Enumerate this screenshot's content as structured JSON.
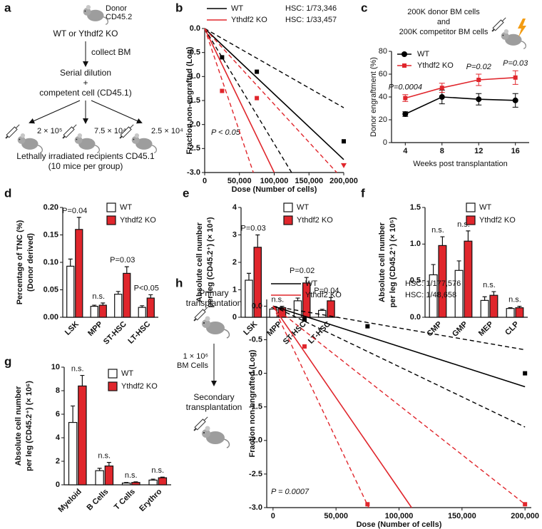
{
  "panel_labels": [
    "a",
    "b",
    "c",
    "d",
    "e",
    "f",
    "g",
    "h"
  ],
  "diagram_a": {
    "donor": "Donor",
    "donor_marker": "CD45.2",
    "genotypes": "WT or Ythdf2 KO",
    "step1": "collect BM",
    "step2": "Serial dilution",
    "plus": "+",
    "step3": "competent cell (CD45.1)",
    "doses": [
      "2 × 10⁵",
      "7.5 × 10⁴",
      "2.5 × 10⁴"
    ],
    "recipients": "Lethally irradiated recipients CD45.1",
    "group_size": "(10 mice per group)"
  },
  "diagram_h": {
    "primary": [
      "Primary",
      "transplantation"
    ],
    "cells": [
      "1 × 10⁶",
      "BM Cells"
    ],
    "secondary": [
      "Secondary",
      "transplantation"
    ]
  },
  "chart_data": [
    {
      "type": "line",
      "xlabel": "Dose (Number of cells)",
      "ylabel": "Fraction non-engrafted (Log)",
      "annotation": "P < 0.05",
      "legend": "top",
      "xlim": [
        0,
        200000
      ],
      "xticks": [
        0,
        {
          "value": 50000,
          "label": "50,000"
        },
        {
          "value": 100000,
          "label": "100,000"
        },
        {
          "value": 150000,
          "label": "150,000"
        },
        {
          "value": 200000,
          "label": "200,000"
        }
      ],
      "ylim": [
        -3.0,
        0.0
      ],
      "yticks": [
        {
          "value": 0,
          "label": "0.0"
        },
        -0.5,
        {
          "value": -1,
          "label": "-1.0"
        },
        -1.5,
        {
          "value": -2,
          "label": "-2.0"
        },
        -2.5,
        {
          "value": -3,
          "label": "-3.0"
        }
      ],
      "series": [
        {
          "name": "WT",
          "frequency_label": "HSC: 1/73,346",
          "color": "#000000",
          "style": "solid",
          "x": [
            0,
            200000
          ],
          "values": [
            0,
            -2.73
          ]
        },
        {
          "name": "Ythdf2 KO",
          "frequency_label": "HSC: 1/33,457",
          "color": "#e0262c",
          "style": "solid",
          "x": [
            0,
            100000
          ],
          "values": [
            0,
            -3.0
          ]
        },
        {
          "color": "#000000",
          "style": "dashed",
          "x": [
            0,
            200000
          ],
          "values": [
            0,
            -1.65
          ]
        },
        {
          "color": "#000000",
          "style": "dashed",
          "x": [
            0,
            125000
          ],
          "values": [
            0,
            -3.0
          ]
        },
        {
          "color": "#e0262c",
          "style": "dashed",
          "x": [
            0,
            190000
          ],
          "values": [
            0,
            -3.0
          ]
        },
        {
          "color": "#e0262c",
          "style": "dashed",
          "x": [
            0,
            70000
          ],
          "values": [
            0,
            -3.0
          ]
        },
        {
          "color": "#000000",
          "style": "none",
          "marker": "square",
          "x": [
            25000,
            75000,
            200000
          ],
          "values": [
            -0.6,
            -0.9,
            -2.35
          ]
        },
        {
          "color": "#e0262c",
          "style": "none",
          "marker": "square",
          "x": [
            25000,
            75000
          ],
          "values": [
            -1.3,
            -1.45
          ]
        },
        {
          "color": "#e0262c",
          "style": "none",
          "marker": "triangle",
          "x": [
            200000
          ],
          "values": [
            -2.85
          ]
        }
      ]
    },
    {
      "type": "line",
      "header": [
        "200K donor BM cells",
        "and",
        "200K competitor BM cells"
      ],
      "xlabel": "Weeks post transplantation",
      "ylabel": "Donor engraftment (%)",
      "legend": "top-left",
      "x": [
        4,
        8,
        12,
        16
      ],
      "xlim": [
        2.5,
        17.5
      ],
      "xticks": [
        4,
        8,
        12,
        16
      ],
      "ylim": [
        0,
        80
      ],
      "yticks": [
        0,
        20,
        40,
        60,
        80
      ],
      "annotations": [
        "P=0.0004",
        null,
        "P=0.02",
        "P=0.03"
      ],
      "series": [
        {
          "name": "WT",
          "color": "#000000",
          "style": "solid",
          "marker": "circle",
          "values": [
            25,
            40,
            38,
            37
          ],
          "errors": [
            2,
            6,
            5,
            6
          ]
        },
        {
          "name": "Ythdf2 KO",
          "color": "#e0262c",
          "style": "solid",
          "marker": "square",
          "values": [
            39,
            48,
            55,
            57
          ],
          "errors": [
            3,
            4,
            5,
            6
          ]
        }
      ]
    },
    {
      "type": "bar",
      "ylabel": [
        "Percentage of TNC (%)",
        "(Donor derived)"
      ],
      "legend": "top-right",
      "categories": [
        "LSK",
        "MPP",
        "ST-HSC",
        "LT-HSC"
      ],
      "annotations": [
        "P=0.04",
        "n.s.",
        "P=0.03",
        "P<0.05"
      ],
      "ylim": [
        0,
        0.2
      ],
      "yticks": [
        {
          "value": 0,
          "label": "0.00"
        },
        0.05,
        {
          "value": 0.1,
          "label": "0.10"
        },
        0.15,
        {
          "value": 0.2,
          "label": "0.20"
        }
      ],
      "series": [
        {
          "name": "WT",
          "color": "#ffffff",
          "values": [
            0.093,
            0.02,
            0.042,
            0.018
          ],
          "errors": [
            0.013,
            0.002,
            0.005,
            0.003
          ]
        },
        {
          "name": "Ythdf2 KO",
          "color": "#e0262c",
          "values": [
            0.16,
            0.022,
            0.08,
            0.035
          ],
          "errors": [
            0.022,
            0.004,
            0.012,
            0.006
          ]
        }
      ]
    },
    {
      "type": "bar",
      "ylabel": [
        "Absolute cell number",
        "per leg (CD45.2⁺) (× 10⁴)"
      ],
      "legend": "top-right",
      "categories": [
        "LSK",
        "MPP",
        "ST-HSC",
        "LT-HSC"
      ],
      "annotations": [
        "P=0.03",
        "n.s.",
        "P=0.02",
        "P=0.04"
      ],
      "ylim": [
        0,
        4
      ],
      "yticks": [
        0,
        1,
        2,
        3,
        4
      ],
      "series": [
        {
          "name": "WT",
          "color": "#ffffff",
          "values": [
            1.35,
            0.3,
            0.6,
            0.25
          ],
          "errors": [
            0.25,
            0.05,
            0.1,
            0.04
          ]
        },
        {
          "name": "Ythdf2 KO",
          "color": "#e0262c",
          "values": [
            2.55,
            0.35,
            1.25,
            0.6
          ],
          "errors": [
            0.45,
            0.05,
            0.2,
            0.12
          ]
        }
      ]
    },
    {
      "type": "bar",
      "ylabel": [
        "Absolute cell number",
        "per leg (CD45.2⁺) (× 10⁵)"
      ],
      "legend": "top-right",
      "categories": [
        "CMP",
        "GMP",
        "MEP",
        "CLP"
      ],
      "annotations": [
        "n.s.",
        "n.s.",
        "n.s.",
        "n.s."
      ],
      "ylim": [
        0,
        1.5
      ],
      "yticks": [
        {
          "value": 0,
          "label": "0.0"
        },
        0.5,
        {
          "value": 1,
          "label": "1.0"
        },
        1.5
      ],
      "series": [
        {
          "name": "WT",
          "color": "#ffffff",
          "values": [
            0.58,
            0.64,
            0.23,
            0.12
          ],
          "errors": [
            0.14,
            0.13,
            0.05,
            0.01
          ]
        },
        {
          "name": "Ythdf2 KO",
          "color": "#e0262c",
          "values": [
            0.98,
            1.04,
            0.3,
            0.13
          ],
          "errors": [
            0.12,
            0.14,
            0.05,
            0.02
          ]
        }
      ]
    },
    {
      "type": "bar",
      "ylabel": [
        "Absolute cell number",
        "per leg (CD45.2⁺) (× 10⁶)"
      ],
      "legend": "top-right",
      "categories": [
        "Myeloid",
        "B Cells",
        "T Cells",
        "Erythro"
      ],
      "annotations": [
        "n.s.",
        "n.s.",
        "n.s.",
        "n.s."
      ],
      "ylim": [
        0,
        10
      ],
      "yticks": [
        0,
        2,
        4,
        6,
        8,
        10
      ],
      "series": [
        {
          "name": "WT",
          "color": "#ffffff",
          "values": [
            5.3,
            1.2,
            0.15,
            0.4
          ],
          "errors": [
            1.4,
            0.2,
            0.05,
            0.08
          ]
        },
        {
          "name": "Ythdf2 KO",
          "color": "#e0262c",
          "values": [
            8.4,
            1.6,
            0.2,
            0.6
          ],
          "errors": [
            0.9,
            0.3,
            0.05,
            0.05
          ]
        }
      ]
    },
    {
      "type": "line",
      "xlabel": "Dose (Number of cells)",
      "ylabel": "Fraction non-engrafted (Log)",
      "annotation": "P = 0.0007",
      "legend": "top",
      "xlim": [
        -5000,
        205000
      ],
      "xticks": [
        0,
        {
          "value": 50000,
          "label": "50,000"
        },
        {
          "value": 100000,
          "label": "100,000"
        },
        {
          "value": 150000,
          "label": "150,000"
        },
        {
          "value": 200000,
          "label": "200,000"
        }
      ],
      "ylim": [
        -3.0,
        0.1
      ],
      "yticks": [
        {
          "value": 0,
          "label": "0.0"
        },
        -0.5,
        {
          "value": -1,
          "label": "-1.0"
        },
        -1.5,
        {
          "value": -2,
          "label": "-2.0"
        },
        -2.5,
        {
          "value": -3,
          "label": "-3.0"
        }
      ],
      "series": [
        {
          "name": "WT",
          "frequency_label": "HSC: 1/177,576",
          "color": "#000000",
          "style": "solid",
          "x": [
            0,
            200000
          ],
          "values": [
            0,
            -1.2
          ]
        },
        {
          "name": "Ythdf2 KO",
          "frequency_label": "HSC: 1/48,658",
          "color": "#e0262c",
          "style": "solid",
          "x": [
            0,
            110000
          ],
          "values": [
            0,
            -3.0
          ]
        },
        {
          "color": "#000000",
          "style": "dashed",
          "x": [
            0,
            200000
          ],
          "values": [
            0,
            -0.65
          ]
        },
        {
          "color": "#000000",
          "style": "dashed",
          "x": [
            0,
            200000
          ],
          "values": [
            0,
            -1.8
          ]
        },
        {
          "color": "#e0262c",
          "style": "dashed",
          "x": [
            0,
            200000
          ],
          "values": [
            0,
            -2.95
          ]
        },
        {
          "color": "#e0262c",
          "style": "dashed",
          "x": [
            0,
            76000
          ],
          "values": [
            0,
            -3.0
          ]
        },
        {
          "color": "#000000",
          "style": "none",
          "marker": "square",
          "x": [
            25000,
            75000,
            200000
          ],
          "values": [
            -0.2,
            -0.3,
            -1.0
          ]
        },
        {
          "color": "#e0262c",
          "style": "none",
          "marker": "square",
          "x": [
            25000,
            75000,
            200000
          ],
          "values": [
            -0.6,
            -2.95,
            -2.95
          ]
        }
      ]
    }
  ]
}
